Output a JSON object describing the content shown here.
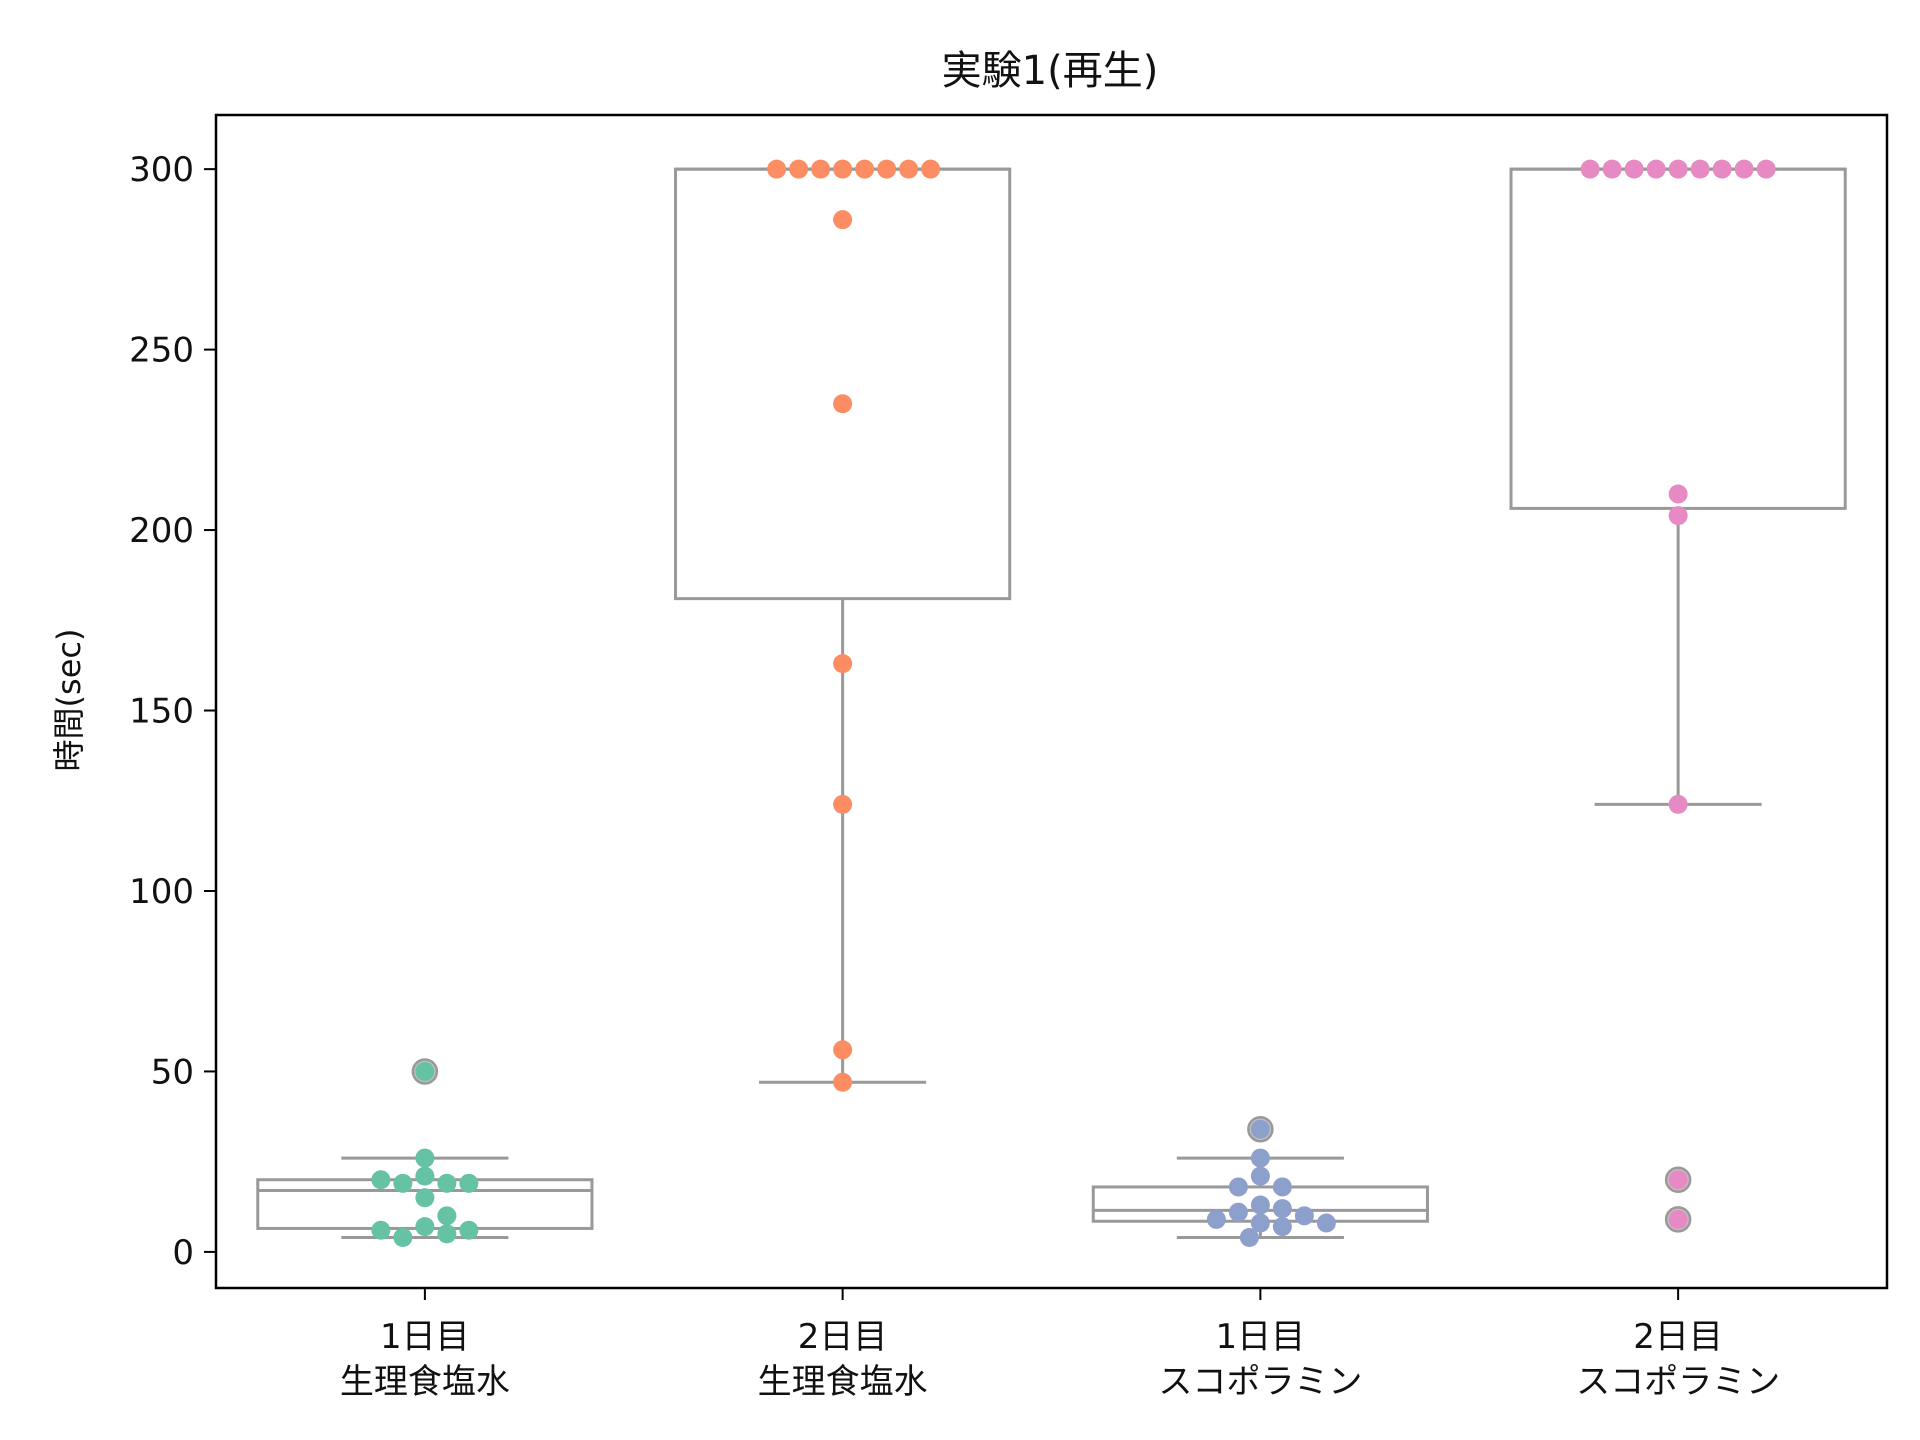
{
  "chart_data": {
    "type": "box",
    "title": "実験1(再生)",
    "xlabel": "",
    "ylabel": "時間(sec)",
    "ylim": [
      -10,
      315
    ],
    "yticks": [
      0,
      50,
      100,
      150,
      200,
      250,
      300
    ],
    "grid": false,
    "legend": "none",
    "box_color": "#999999",
    "categories": [
      {
        "line1": "1日目",
        "line2": "生理食塩水"
      },
      {
        "line1": "2日目",
        "line2": "生理食塩水"
      },
      {
        "line1": "1日目",
        "line2": "スコポラミン"
      },
      {
        "line1": "2日目",
        "line2": "スコポラミン"
      }
    ],
    "series": [
      {
        "color": "#66c2a5",
        "box": {
          "q1": 6.5,
          "median": 17,
          "q3": 20,
          "whisker_low": 4,
          "whisker_high": 26
        },
        "outliers": [
          50
        ],
        "points": [
          21,
          19,
          26,
          19,
          19,
          20,
          7,
          5,
          15,
          10,
          4,
          6,
          6,
          50
        ]
      },
      {
        "color": "#fc8d62",
        "box": {
          "q1": 181,
          "median": 300,
          "q3": 300,
          "whisker_low": 47,
          "whisker_high": 300
        },
        "outliers": [],
        "points": [
          300,
          300,
          300,
          300,
          300,
          300,
          300,
          300,
          286,
          235,
          163,
          124,
          56,
          47
        ]
      },
      {
        "color": "#8da0cb",
        "box": {
          "q1": 8.5,
          "median": 11.5,
          "q3": 18,
          "whisker_low": 4,
          "whisker_high": 26
        },
        "outliers": [
          34
        ],
        "points": [
          34,
          26,
          21,
          18,
          18,
          13,
          12,
          11,
          10,
          9,
          8,
          8,
          7,
          4
        ]
      },
      {
        "color": "#e78ac3",
        "box": {
          "q1": 206,
          "median": 300,
          "q3": 300,
          "whisker_low": 124,
          "whisker_high": 300
        },
        "outliers": [
          20,
          9
        ],
        "points": [
          300,
          300,
          300,
          300,
          300,
          300,
          300,
          300,
          300,
          210,
          204,
          124,
          20,
          9
        ]
      }
    ]
  }
}
